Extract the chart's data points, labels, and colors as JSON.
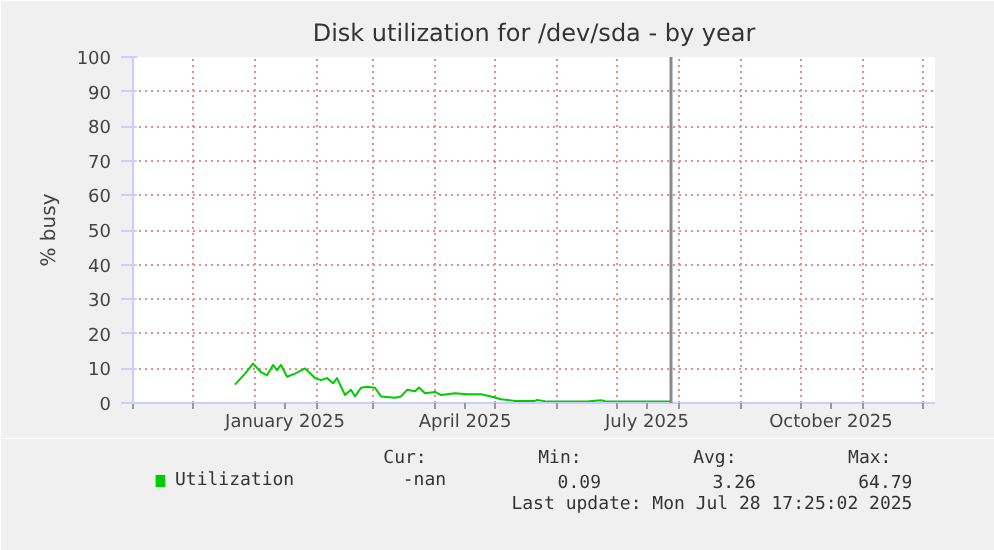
{
  "chart_data": {
    "type": "line",
    "title": "Disk utilization for /dev/sda - by year",
    "ylabel": "% busy",
    "x": [
      "2024-12-22",
      "2024-12-27",
      "2024-12-31",
      "2025-01-04",
      "2025-01-07",
      "2025-01-10",
      "2025-01-12",
      "2025-01-14",
      "2025-01-17",
      "2025-01-21",
      "2025-01-26",
      "2025-01-31",
      "2025-02-03",
      "2025-02-06",
      "2025-02-09",
      "2025-02-11",
      "2025-02-15",
      "2025-02-18",
      "2025-02-20",
      "2025-02-23",
      "2025-02-26",
      "2025-03-02",
      "2025-03-05",
      "2025-03-12",
      "2025-03-15",
      "2025-03-18",
      "2025-03-22",
      "2025-03-24",
      "2025-03-27",
      "2025-04-01",
      "2025-04-04",
      "2025-04-11",
      "2025-04-17",
      "2025-04-24",
      "2025-04-29",
      "2025-05-04",
      "2025-05-11",
      "2025-05-21",
      "2025-05-22",
      "2025-05-27",
      "2025-06-16",
      "2025-06-23",
      "2025-06-26",
      "2025-07-16",
      "2025-07-28"
    ],
    "series": [
      {
        "name": "Utilization",
        "color": "#00cc00",
        "values": [
          5.3,
          8.5,
          11.4,
          8.9,
          8,
          11,
          9.5,
          11,
          7.6,
          8.5,
          10,
          7.2,
          6.6,
          7.2,
          5.7,
          7.2,
          2.3,
          3.8,
          1.9,
          4.4,
          4.7,
          4.4,
          1.9,
          1.5,
          1.9,
          3.8,
          3.4,
          4.5,
          2.8,
          3.2,
          2.3,
          2.8,
          2.5,
          2.5,
          1.9,
          1.1,
          0.6,
          0.6,
          0.9,
          0.4,
          0.4,
          0.8,
          0.4,
          0.4,
          0.4
        ]
      }
    ],
    "xlim": [
      "2024-11-01",
      "2025-12-07"
    ],
    "xticks": [
      {
        "value": "2024-11-01",
        "label": null
      },
      {
        "value": "2024-12-01",
        "label": null
      },
      {
        "value": "2025-01-01",
        "label": null
      },
      {
        "value": "2025-01-16",
        "label": "January 2025"
      },
      {
        "value": "2025-02-01",
        "label": null
      },
      {
        "value": "2025-03-01",
        "label": null
      },
      {
        "value": "2025-04-01",
        "label": null
      },
      {
        "value": "2025-04-16",
        "label": "April 2025"
      },
      {
        "value": "2025-05-01",
        "label": null
      },
      {
        "value": "2025-06-01",
        "label": null
      },
      {
        "value": "2025-07-01",
        "label": null
      },
      {
        "value": "2025-07-16",
        "label": "July 2025"
      },
      {
        "value": "2025-08-01",
        "label": null
      },
      {
        "value": "2025-09-01",
        "label": null
      },
      {
        "value": "2025-10-01",
        "label": null
      },
      {
        "value": "2025-10-16",
        "label": "October 2025"
      },
      {
        "value": "2025-11-01",
        "label": null
      },
      {
        "value": "2025-12-01",
        "label": null
      }
    ],
    "ylim": [
      0,
      100
    ],
    "yticks": [
      0,
      10,
      20,
      30,
      40,
      50,
      60,
      70,
      80,
      90,
      100
    ],
    "grid": true,
    "legend": "bottom",
    "line_style": "solid",
    "marker": "none",
    "ref_lines": [
      {
        "axis": "x",
        "value": "2025-07-28",
        "label": null,
        "color": "#888888"
      }
    ],
    "annotations": [
      "Cur:",
      "-nan",
      "Min:",
      "0.09",
      "Avg:",
      "3.26",
      "Max:",
      "64.79",
      "Last update: Mon Jul 28 17:25:02 2025"
    ]
  }
}
